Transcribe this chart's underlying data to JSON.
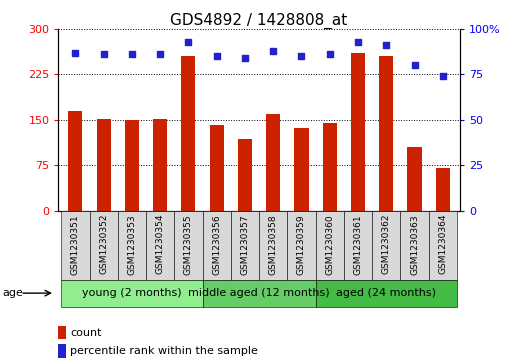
{
  "title": "GDS4892 / 1428808_at",
  "samples": [
    "GSM1230351",
    "GSM1230352",
    "GSM1230353",
    "GSM1230354",
    "GSM1230355",
    "GSM1230356",
    "GSM1230357",
    "GSM1230358",
    "GSM1230359",
    "GSM1230360",
    "GSM1230361",
    "GSM1230362",
    "GSM1230363",
    "GSM1230364"
  ],
  "counts": [
    165,
    152,
    150,
    152,
    255,
    142,
    118,
    160,
    137,
    144,
    260,
    255,
    105,
    70
  ],
  "percentile_ranks": [
    87,
    86,
    86,
    86,
    93,
    85,
    84,
    88,
    85,
    86,
    93,
    91,
    80,
    74
  ],
  "groups": [
    {
      "label": "young (2 months)",
      "start": 0,
      "end": 5,
      "color": "#90EE90"
    },
    {
      "label": "middle aged (12 months)",
      "start": 5,
      "end": 9,
      "color": "#66CC66"
    },
    {
      "label": "aged (24 months)",
      "start": 9,
      "end": 14,
      "color": "#44BB44"
    }
  ],
  "bar_color": "#CC2200",
  "dot_color": "#2222CC",
  "left_yticks": [
    0,
    75,
    150,
    225,
    300
  ],
  "right_yticks": [
    0,
    25,
    50,
    75,
    100
  ],
  "ylim_left": [
    0,
    300
  ],
  "ylim_right": [
    0,
    100
  ],
  "title_fontsize": 11,
  "tick_label_fontsize": 6.5,
  "group_label_fontsize": 8,
  "legend_fontsize": 8,
  "age_fontsize": 8,
  "sample_box_color": "#D8D8D8",
  "background_color": "#ffffff"
}
